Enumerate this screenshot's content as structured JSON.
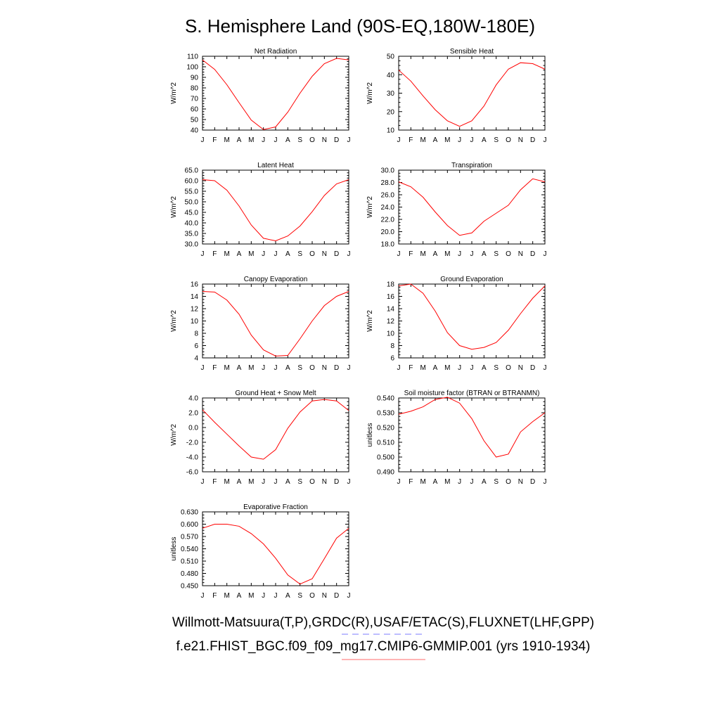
{
  "title": "S. Hemisphere Land (90S-EQ,180W-180E)",
  "months": [
    "J",
    "F",
    "M",
    "A",
    "M",
    "J",
    "J",
    "A",
    "S",
    "O",
    "N",
    "D",
    "J"
  ],
  "footer": {
    "obs_line": "Willmott-Matsuura(T,P),GRDC(R),USAF/ETAC(S),FLUXNET(LHF,GPP)",
    "model_line": "f.e21.FHIST_BGC.f09_f09_mg17.CMIP6-GMMIP.001 (yrs 1910-1934)",
    "obs_line_color": "#7b7bff",
    "model_line_color": "#ff6b6b"
  },
  "colors": {
    "series": "#ff0000",
    "axes": "#000000"
  },
  "chart_data": [
    {
      "type": "line",
      "title": "Net Radiation",
      "ylabel": "W/m^2",
      "ylim": [
        40,
        110
      ],
      "yticks": [
        40,
        50,
        60,
        70,
        80,
        90,
        100,
        110
      ],
      "ytick_labels": [
        "40",
        "50",
        "60",
        "70",
        "80",
        "90",
        "100",
        "110"
      ],
      "series": [
        {
          "values": [
            106.5,
            97.5,
            83,
            66,
            49.5,
            40.5,
            43,
            57,
            75,
            91,
            103,
            108,
            106.5
          ]
        }
      ]
    },
    {
      "type": "line",
      "title": "Sensible Heat",
      "ylabel": "W/m^2",
      "ylim": [
        10,
        50
      ],
      "yticks": [
        10,
        20,
        30,
        40,
        50
      ],
      "ytick_labels": [
        "10",
        "20",
        "30",
        "40",
        "50"
      ],
      "series": [
        {
          "values": [
            42.5,
            36.5,
            28.5,
            21,
            15,
            12,
            15,
            23,
            34.5,
            43,
            46.5,
            46,
            43
          ]
        }
      ]
    },
    {
      "type": "line",
      "title": "Latent Heat",
      "ylabel": "W/m^2",
      "ylim": [
        30,
        65
      ],
      "yticks": [
        30,
        35,
        40,
        45,
        50,
        55,
        60,
        65
      ],
      "ytick_labels": [
        "30.0",
        "35.0",
        "40.0",
        "45.0",
        "50.0",
        "55.0",
        "60.0",
        "65.0"
      ],
      "series": [
        {
          "values": [
            60.5,
            60,
            55.5,
            48,
            39,
            32.7,
            31.5,
            33.8,
            38.5,
            45.3,
            53,
            58.5,
            60.5
          ]
        }
      ]
    },
    {
      "type": "line",
      "title": "Transpiration",
      "ylabel": "W/m^2",
      "ylim": [
        18,
        30
      ],
      "yticks": [
        18,
        20,
        22,
        24,
        26,
        28,
        30
      ],
      "ytick_labels": [
        "18.0",
        "20.0",
        "22.0",
        "24.0",
        "26.0",
        "28.0",
        "30.0"
      ],
      "series": [
        {
          "values": [
            28.1,
            27.3,
            25.6,
            23.2,
            21,
            19.4,
            19.8,
            21.7,
            23,
            24.3,
            26.8,
            28.6,
            28.1
          ]
        }
      ]
    },
    {
      "type": "line",
      "title": "Canopy Evaporation",
      "ylabel": "W/m^2",
      "ylim": [
        4,
        16
      ],
      "yticks": [
        4,
        6,
        8,
        10,
        12,
        14,
        16
      ],
      "ytick_labels": [
        "4",
        "6",
        "8",
        "10",
        "12",
        "14",
        "16"
      ],
      "series": [
        {
          "values": [
            14.8,
            14.7,
            13.4,
            11.1,
            7.7,
            5.3,
            4.3,
            4.4,
            7.1,
            10,
            12.5,
            14,
            14.8
          ]
        }
      ]
    },
    {
      "type": "line",
      "title": "Ground Evaporation",
      "ylabel": "W/m^2",
      "ylim": [
        6,
        18
      ],
      "yticks": [
        6,
        8,
        10,
        12,
        14,
        16,
        18
      ],
      "ytick_labels": [
        "6",
        "8",
        "10",
        "12",
        "14",
        "16",
        "18"
      ],
      "series": [
        {
          "values": [
            17.7,
            18,
            16.5,
            13.6,
            10.1,
            8,
            7.4,
            7.7,
            8.5,
            10.5,
            13.2,
            15.7,
            17.7
          ]
        }
      ]
    },
    {
      "type": "line",
      "title": "Ground Heat + Snow Melt",
      "ylabel": "W/m^2",
      "ylim": [
        -6,
        4
      ],
      "yticks": [
        -6,
        -4,
        -2,
        0,
        2,
        4
      ],
      "ytick_labels": [
        "-6.0",
        "-4.0",
        "-2.0",
        "0.0",
        "2.0",
        "4.0"
      ],
      "series": [
        {
          "values": [
            2.4,
            0.7,
            -0.9,
            -2.5,
            -4,
            -4.3,
            -3,
            -0.1,
            2.1,
            3.6,
            3.8,
            3.6,
            2.3
          ]
        }
      ]
    },
    {
      "type": "line",
      "title": "Soil moisture factor (BTRAN or BTRANMN)",
      "ylabel": "unitless",
      "ylim": [
        0.49,
        0.54
      ],
      "yticks": [
        0.49,
        0.5,
        0.51,
        0.52,
        0.53,
        0.54
      ],
      "ytick_labels": [
        "0.490",
        "0.500",
        "0.510",
        "0.520",
        "0.530",
        "0.540"
      ],
      "series": [
        {
          "values": [
            0.529,
            0.531,
            0.534,
            0.539,
            0.5405,
            0.5365,
            0.526,
            0.511,
            0.5,
            0.502,
            0.517,
            0.524,
            0.53
          ]
        }
      ]
    },
    {
      "type": "line",
      "title": "Evaporative Fraction",
      "ylabel": "unitless",
      "ylim": [
        0.45,
        0.63
      ],
      "yticks": [
        0.45,
        0.48,
        0.51,
        0.54,
        0.57,
        0.6,
        0.63
      ],
      "ytick_labels": [
        "0.450",
        "0.480",
        "0.510",
        "0.540",
        "0.570",
        "0.600",
        "0.630"
      ],
      "series": [
        {
          "values": [
            0.59,
            0.6,
            0.6,
            0.595,
            0.577,
            0.552,
            0.517,
            0.476,
            0.454,
            0.467,
            0.516,
            0.566,
            0.59
          ]
        }
      ]
    }
  ]
}
